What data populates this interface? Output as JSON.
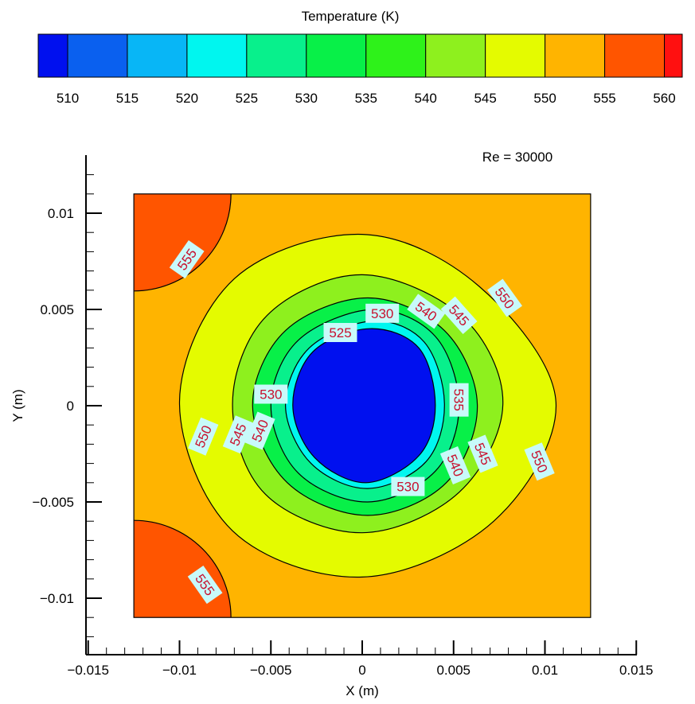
{
  "chart_data": {
    "type": "heatmap",
    "annotation": "Re = 30000",
    "xlabel": "X (m)",
    "ylabel": "Y (m)",
    "xlim": [
      -0.015,
      0.015
    ],
    "ylim": [
      -0.0125,
      0.0125
    ],
    "domain": {
      "x": [
        -0.0125,
        0.0125
      ],
      "y": [
        -0.011,
        0.011
      ]
    },
    "x_ticks": [
      -0.015,
      -0.01,
      -0.005,
      0,
      0.005,
      0.01,
      0.015
    ],
    "x_tick_labels": [
      "−0.015",
      "−0.01",
      "−0.005",
      "0",
      "0.005",
      "0.01",
      "0.015"
    ],
    "y_ticks": [
      0.01,
      0.005,
      0,
      -0.005,
      -0.01
    ],
    "y_tick_labels": [
      "0.01",
      "0.005",
      "0",
      "−0.005",
      "−0.01"
    ],
    "colorbar": {
      "title": "Temperature (K)",
      "levels": [
        510,
        515,
        520,
        525,
        530,
        535,
        540,
        545,
        550,
        555,
        560
      ],
      "level_labels": [
        "510",
        "515",
        "520",
        "525",
        "530",
        "535",
        "540",
        "545",
        "550",
        "555",
        "560"
      ],
      "colors": [
        "#0010ef",
        "#0a60ef",
        "#08b6f6",
        "#00f6ef",
        "#08f08c",
        "#08f048",
        "#2ef21a",
        "#8ef01e",
        "#e4fb00",
        "#ffb400",
        "#ff5500",
        "#ff1010"
      ]
    },
    "region_colors": {
      "below_525": "#0010ef",
      "525_530": "#00f6ef",
      "530_535": "#08f08c",
      "535_540": "#08f048",
      "540_545": "#8ef01e",
      "545_550": "#e4fb00",
      "550_555": "#ffb400",
      "above_555": "#ff5500"
    },
    "contour_labels": [
      {
        "text": "555",
        "x": -0.0096,
        "y": 0.0076
      },
      {
        "text": "555",
        "x": -0.0086,
        "y": -0.0093
      },
      {
        "text": "550",
        "x": 0.0078,
        "y": 0.0056
      },
      {
        "text": "550",
        "x": -0.0087,
        "y": -0.0016
      },
      {
        "text": "550",
        "x": 0.0097,
        "y": -0.0029
      },
      {
        "text": "545",
        "x": 0.0053,
        "y": 0.0047
      },
      {
        "text": "545",
        "x": -0.0068,
        "y": -0.0015
      },
      {
        "text": "545",
        "x": 0.0066,
        "y": -0.0025
      },
      {
        "text": "540",
        "x": 0.0035,
        "y": 0.0049
      },
      {
        "text": "540",
        "x": -0.0056,
        "y": -0.0013
      },
      {
        "text": "540",
        "x": 0.0051,
        "y": -0.0031
      },
      {
        "text": "535",
        "x": 0.0053,
        "y": 0.0003
      },
      {
        "text": "530",
        "x": 0.0011,
        "y": 0.0048
      },
      {
        "text": "530",
        "x": -0.005,
        "y": 0.0006
      },
      {
        "text": "530",
        "x": 0.0025,
        "y": -0.0042
      },
      {
        "text": "525",
        "x": -0.0012,
        "y": 0.0038
      }
    ]
  }
}
